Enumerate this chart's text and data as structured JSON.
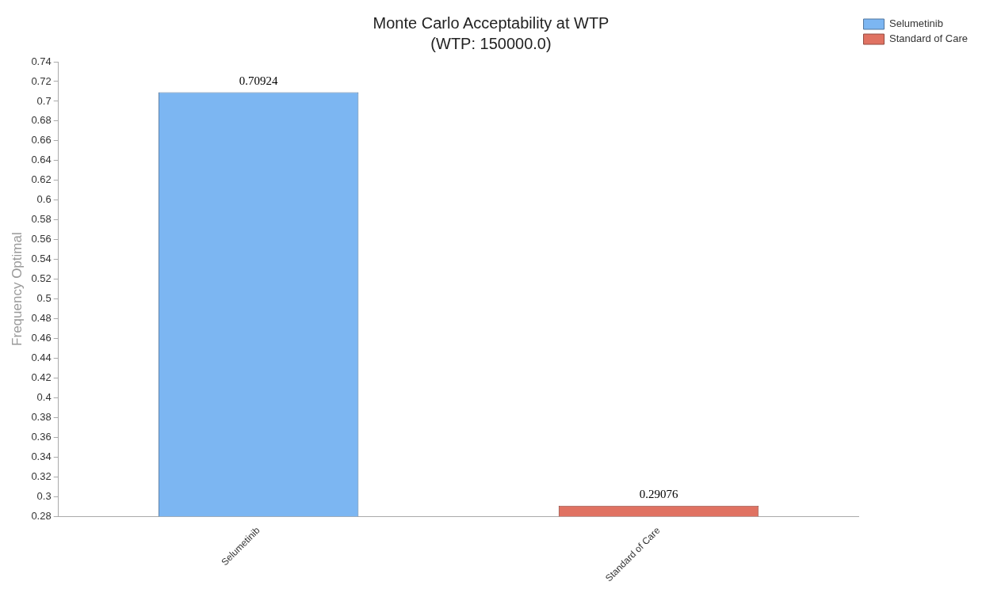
{
  "chart_data": {
    "type": "bar",
    "title": "Monte Carlo Acceptability at WTP",
    "subtitle": "(WTP: 150000.0)",
    "ylabel": "Frequency Optimal",
    "categories": [
      "Selumetinib",
      "Standard of Care"
    ],
    "series": [
      {
        "name": "Selumetinib",
        "color": "#7cb6f2",
        "values": [
          0.70924,
          null
        ]
      },
      {
        "name": "Standard of Care",
        "color": "#e07262",
        "values": [
          null,
          0.29076
        ]
      }
    ],
    "ylim": [
      0.28,
      0.74
    ],
    "yticks": [
      0.28,
      0.3,
      0.32,
      0.34,
      0.36,
      0.38,
      0.4,
      0.42,
      0.44,
      0.46,
      0.48,
      0.5,
      0.52,
      0.54,
      0.56,
      0.58,
      0.6,
      0.62,
      0.64,
      0.66,
      0.68,
      0.7,
      0.72,
      0.74
    ],
    "grid": false,
    "legend": "top right",
    "data_labels": true
  }
}
